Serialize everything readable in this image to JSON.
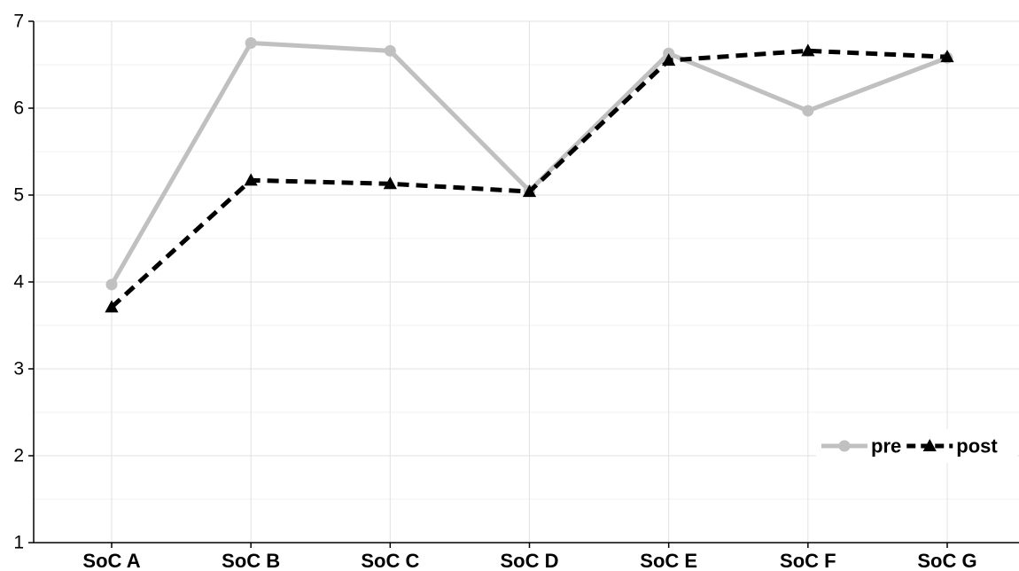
{
  "chart_data": {
    "type": "line",
    "categories": [
      "SoC A",
      "SoC B",
      "SoC C",
      "SoC D",
      "SoC E",
      "SoC F",
      "SoC G"
    ],
    "series": [
      {
        "name": "pre",
        "values": [
          3.97,
          6.75,
          6.66,
          5.05,
          6.63,
          5.97,
          6.58
        ],
        "color": "#c0c0c0",
        "line_style": "solid",
        "marker": "circle"
      },
      {
        "name": "post",
        "values": [
          3.71,
          5.17,
          5.13,
          5.04,
          6.55,
          6.66,
          6.59
        ],
        "color": "#000000",
        "line_style": "dashed",
        "marker": "triangle"
      }
    ],
    "ylim": [
      1,
      7
    ],
    "yticks": [
      "1",
      "2",
      "3",
      "4",
      "5",
      "6",
      "7"
    ],
    "grid": true,
    "legend_position": "bottom-right",
    "title": "",
    "xlabel": "",
    "ylabel": ""
  }
}
